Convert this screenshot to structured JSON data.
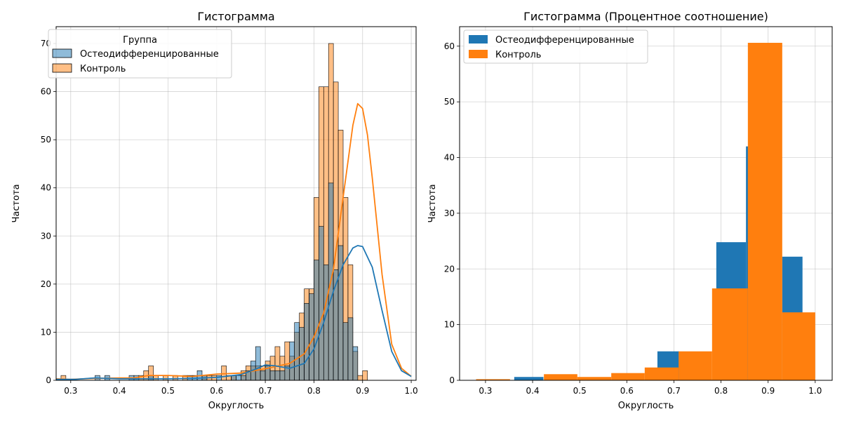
{
  "chart_data": [
    {
      "type": "bar",
      "title": "Гистограмма",
      "xlabel": "Округлость",
      "ylabel": "Частота",
      "xlim": [
        0.27,
        1.01
      ],
      "ylim": [
        0,
        73.5
      ],
      "xticks": [
        0.3,
        0.4,
        0.5,
        0.6,
        0.7,
        0.8,
        0.9,
        1.0
      ],
      "xtick_labels": [
        "0.3",
        "0.4",
        "0.5",
        "0.6",
        "0.7",
        "0.8",
        "0.9",
        "1.0"
      ],
      "yticks": [
        0,
        10,
        20,
        30,
        40,
        50,
        60,
        70
      ],
      "ytick_labels": [
        "0",
        "10",
        "20",
        "30",
        "40",
        "50",
        "60",
        "70"
      ],
      "grid": true,
      "legend": {
        "title": "Группа",
        "position": "top-left"
      },
      "bin_start": 0.28,
      "bin_width": 0.01,
      "series": [
        {
          "name": "Остеодифференцированные",
          "color": "#1f77b4",
          "values": [
            0,
            0,
            0,
            0,
            0,
            0,
            0,
            1,
            0,
            1,
            0,
            0,
            0,
            0,
            1,
            1,
            0,
            0,
            1,
            0,
            0,
            0,
            0,
            0,
            0,
            0,
            1,
            1,
            2,
            1,
            0,
            0,
            1,
            0,
            0,
            1,
            1,
            1,
            2,
            4,
            7,
            2,
            3,
            2,
            2,
            2,
            3,
            8,
            12,
            11,
            16,
            18,
            25,
            32,
            24,
            41,
            23,
            28,
            12,
            13,
            7,
            0,
            0
          ],
          "kde": [
            [
              0.27,
              0.2
            ],
            [
              0.31,
              0.2
            ],
            [
              0.35,
              0.5
            ],
            [
              0.4,
              0.3
            ],
            [
              0.45,
              0.3
            ],
            [
              0.5,
              0.3
            ],
            [
              0.55,
              0.4
            ],
            [
              0.6,
              0.6
            ],
            [
              0.65,
              1.2
            ],
            [
              0.68,
              2.3
            ],
            [
              0.7,
              3.2
            ],
            [
              0.72,
              3.0
            ],
            [
              0.75,
              2.5
            ],
            [
              0.78,
              3.5
            ],
            [
              0.8,
              6.5
            ],
            [
              0.82,
              12.0
            ],
            [
              0.84,
              18.5
            ],
            [
              0.86,
              24.0
            ],
            [
              0.88,
              27.5
            ],
            [
              0.89,
              28.0
            ],
            [
              0.9,
              27.8
            ],
            [
              0.92,
              23.5
            ],
            [
              0.94,
              14.5
            ],
            [
              0.96,
              6.0
            ],
            [
              0.98,
              2.0
            ],
            [
              1.0,
              0.8
            ]
          ]
        },
        {
          "name": "Контроль",
          "color": "#ff7f0e",
          "values": [
            1,
            0,
            0,
            0,
            0,
            0,
            0,
            0,
            0,
            0,
            0,
            0,
            0,
            0,
            0,
            0,
            1,
            2,
            3,
            1,
            0,
            1,
            0,
            1,
            0,
            1,
            0,
            0,
            0,
            1,
            1,
            1,
            0,
            3,
            1,
            1,
            0,
            2,
            3,
            3,
            3,
            3,
            4,
            5,
            7,
            5,
            8,
            5,
            10,
            14,
            19,
            19,
            38,
            61,
            61,
            70,
            62,
            52,
            38,
            24,
            6,
            1,
            2
          ],
          "kde": [
            [
              0.27,
              0.3
            ],
            [
              0.3,
              0.2
            ],
            [
              0.35,
              0.4
            ],
            [
              0.4,
              0.5
            ],
            [
              0.43,
              0.5
            ],
            [
              0.46,
              1.0
            ],
            [
              0.5,
              1.0
            ],
            [
              0.55,
              0.8
            ],
            [
              0.6,
              1.3
            ],
            [
              0.65,
              1.5
            ],
            [
              0.7,
              2.4
            ],
            [
              0.75,
              3.5
            ],
            [
              0.78,
              5.5
            ],
            [
              0.8,
              9.0
            ],
            [
              0.82,
              14.0
            ],
            [
              0.84,
              23.0
            ],
            [
              0.86,
              38.0
            ],
            [
              0.88,
              53.0
            ],
            [
              0.89,
              57.5
            ],
            [
              0.9,
              56.5
            ],
            [
              0.91,
              51.0
            ],
            [
              0.92,
              42.0
            ],
            [
              0.94,
              22.0
            ],
            [
              0.96,
              7.5
            ],
            [
              0.98,
              2.5
            ],
            [
              1.0,
              0.8
            ]
          ]
        }
      ]
    },
    {
      "type": "bar",
      "title": "Гистограмма (Процентное соотношение)",
      "xlabel": "Округлость",
      "ylabel": "Частота",
      "xlim": [
        0.245,
        1.036
      ],
      "ylim": [
        0,
        63.5
      ],
      "xticks": [
        0.3,
        0.4,
        0.5,
        0.6,
        0.7,
        0.8,
        0.9,
        1.0
      ],
      "xtick_labels": [
        "0.3",
        "0.4",
        "0.5",
        "0.6",
        "0.7",
        "0.8",
        "0.9",
        "1.0"
      ],
      "yticks": [
        0,
        10,
        20,
        30,
        40,
        50,
        60
      ],
      "ytick_labels": [
        "0",
        "10",
        "20",
        "30",
        "40",
        "50",
        "60"
      ],
      "grid": true,
      "legend": {
        "position": "top-left"
      },
      "series": [
        {
          "name": "Остеодифференцированные",
          "color": "#1f77b4",
          "bins": [
            [
              0.361,
              0.423,
              0.6
            ],
            [
              0.665,
              0.711,
              5.2
            ],
            [
              0.79,
              0.853,
              24.8
            ],
            [
              0.853,
              0.858,
              42.0
            ],
            [
              0.93,
              0.973,
              22.2
            ]
          ]
        },
        {
          "name": "Контроль",
          "color": "#ff7f0e",
          "bins": [
            [
              0.28,
              0.352,
              0.2
            ],
            [
              0.424,
              0.495,
              1.1
            ],
            [
              0.495,
              0.567,
              0.6
            ],
            [
              0.567,
              0.638,
              1.3
            ],
            [
              0.638,
              0.71,
              2.3
            ],
            [
              0.71,
              0.781,
              5.2
            ],
            [
              0.781,
              0.857,
              16.5
            ],
            [
              0.857,
              0.93,
              60.6
            ],
            [
              0.93,
              1.0,
              12.2
            ]
          ]
        }
      ]
    }
  ]
}
